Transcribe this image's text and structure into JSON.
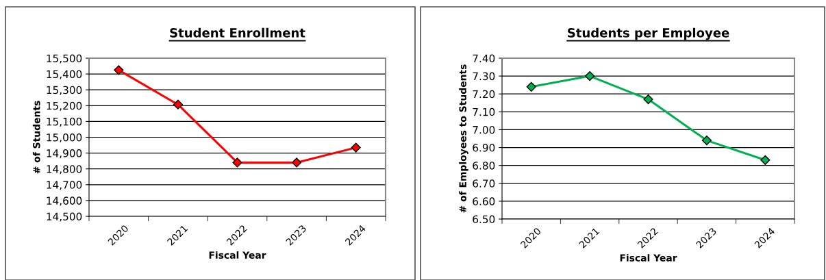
{
  "chart_data": [
    {
      "type": "line",
      "title": "Student Enrollment",
      "xlabel": "Fiscal Year",
      "ylabel": "# of Students",
      "categories": [
        "2020",
        "2021",
        "2022",
        "2023",
        "2024"
      ],
      "series": [
        {
          "color": "#ff0000",
          "values": [
            15425,
            15207,
            14840,
            14840,
            14935
          ]
        }
      ],
      "ylim": [
        14500,
        15500
      ],
      "yticks": [
        {
          "value": 14500,
          "label": "14,500"
        },
        {
          "value": 14600,
          "label": "14,600"
        },
        {
          "value": 14700,
          "label": "14,700"
        },
        {
          "value": 14800,
          "label": "14,800"
        },
        {
          "value": 14900,
          "label": "14,900"
        },
        {
          "value": 15000,
          "label": "15,000"
        },
        {
          "value": 15100,
          "label": "15,100"
        },
        {
          "value": 15200,
          "label": "15,200"
        },
        {
          "value": 15300,
          "label": "15,300"
        },
        {
          "value": 15400,
          "label": "15,400"
        },
        {
          "value": 15500,
          "label": "15,500"
        }
      ],
      "grid": "y",
      "marker": "diamond",
      "line_style": "solid"
    },
    {
      "type": "line",
      "title": "Students per Employee",
      "xlabel": "Fiscal Year",
      "ylabel": "# of Employees to Students",
      "categories": [
        "2020",
        "2021",
        "2022",
        "2023",
        "2024"
      ],
      "series": [
        {
          "color": "#00b050",
          "values": [
            7.24,
            7.3,
            7.17,
            6.94,
            6.83
          ]
        }
      ],
      "ylim": [
        6.5,
        7.4
      ],
      "yticks": [
        {
          "value": 6.5,
          "label": "6.50"
        },
        {
          "value": 6.6,
          "label": "6.60"
        },
        {
          "value": 6.7,
          "label": "6.70"
        },
        {
          "value": 6.8,
          "label": "6.80"
        },
        {
          "value": 6.9,
          "label": "6.90"
        },
        {
          "value": 7.0,
          "label": "7.00"
        },
        {
          "value": 7.1,
          "label": "7.10"
        },
        {
          "value": 7.2,
          "label": "7.20"
        },
        {
          "value": 7.3,
          "label": "7.30"
        },
        {
          "value": 7.4,
          "label": "7.40"
        }
      ],
      "grid": "y",
      "marker": "diamond",
      "line_style": "solid"
    }
  ]
}
